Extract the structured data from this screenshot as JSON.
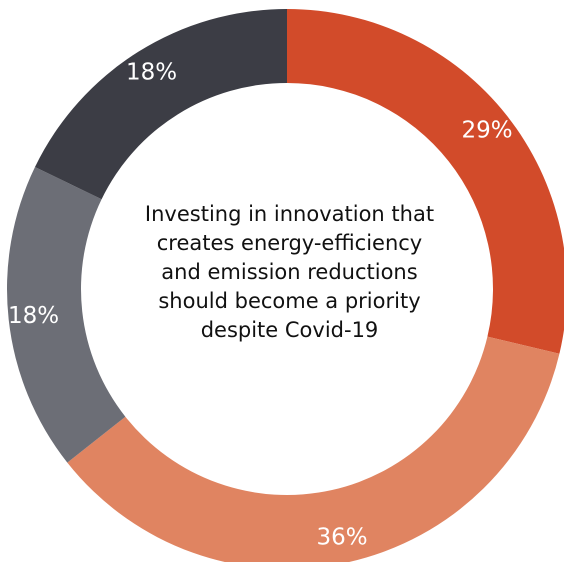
{
  "chart_data": {
    "type": "pie",
    "variant": "donut",
    "title": "",
    "center_text_lines": [
      "Investing in innovation that",
      "creates energy-efficiency",
      "and emission reductions",
      "should become a priority",
      "despite Covid-19"
    ],
    "slices": [
      {
        "label": "29%",
        "value": 29,
        "color": "#d24b2a"
      },
      {
        "label": "36%",
        "value": 36,
        "color": "#e08461"
      },
      {
        "label": "18%",
        "value": 18,
        "color": "#6c6e76"
      },
      {
        "label": "18%",
        "value": 18,
        "color": "#3c3d45"
      }
    ],
    "start_angle_deg": 0,
    "direction": "clockwise",
    "legend": "none"
  }
}
